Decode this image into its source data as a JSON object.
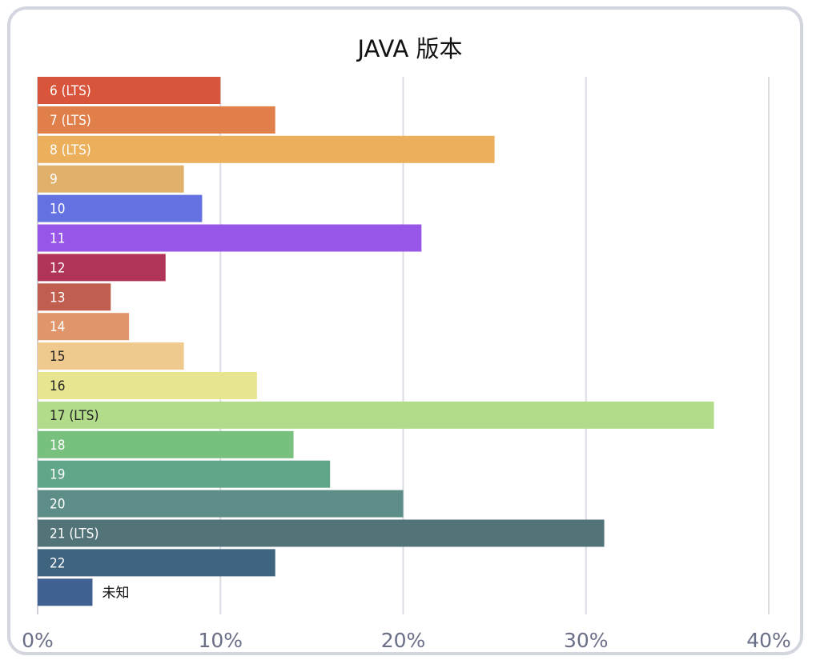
{
  "chart_data": {
    "type": "bar",
    "orientation": "horizontal",
    "title": "JAVA 版本",
    "xlabel": "",
    "ylabel": "",
    "xlim": [
      0,
      40
    ],
    "x_ticks": [
      "0%",
      "10%",
      "20%",
      "30%",
      "40%"
    ],
    "grid": "vertical",
    "legend": "none",
    "categories": [
      "6 (LTS)",
      "7 (LTS)",
      "8 (LTS)",
      "9",
      "10",
      "11",
      "12",
      "13",
      "14",
      "15",
      "16",
      "17 (LTS)",
      "18",
      "19",
      "20",
      "21 (LTS)",
      "22",
      "未知"
    ],
    "values": [
      10,
      13,
      25,
      8,
      9,
      21,
      7,
      4,
      5,
      8,
      12,
      37,
      14,
      16,
      20,
      31,
      13,
      3
    ],
    "colors": [
      "#d8553c",
      "#e07f4a",
      "#ecb05c",
      "#e1b06b",
      "#6372e0",
      "#9856e8",
      "#b03358",
      "#c05e50",
      "#e0966a",
      "#f0c98e",
      "#e8e591",
      "#b2dc8a",
      "#77c07d",
      "#62a68a",
      "#5c8e87",
      "#527478",
      "#3e6480",
      "#3f6090"
    ],
    "label_colors": [
      "#ffffff",
      "#ffffff",
      "#ffffff",
      "#ffffff",
      "#ffffff",
      "#ffffff",
      "#ffffff",
      "#ffffff",
      "#ffffff",
      "#222222",
      "#222222",
      "#222222",
      "#ffffff",
      "#ffffff",
      "#ffffff",
      "#ffffff",
      "#ffffff",
      "#111111"
    ]
  }
}
